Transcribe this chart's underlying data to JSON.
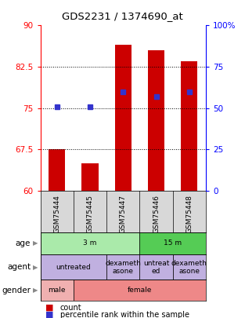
{
  "title": "GDS2231 / 1374690_at",
  "samples": [
    "GSM75444",
    "GSM75445",
    "GSM75447",
    "GSM75446",
    "GSM75448"
  ],
  "bar_values": [
    67.5,
    65.0,
    86.5,
    85.5,
    83.5
  ],
  "bar_base": 60,
  "percentile_values": [
    51,
    51,
    60,
    57,
    60
  ],
  "ylim_left": [
    60,
    90
  ],
  "ylim_right": [
    0,
    100
  ],
  "yticks_left": [
    60,
    67.5,
    75,
    82.5,
    90
  ],
  "ytick_left_labels": [
    "60",
    "67.5",
    "75",
    "82.5",
    "90"
  ],
  "yticks_right": [
    0,
    25,
    50,
    75,
    100
  ],
  "ytick_right_labels": [
    "0",
    "25",
    "50",
    "75",
    "100%"
  ],
  "bar_color": "#cc0000",
  "dot_color": "#3333cc",
  "dotgrid_vals": [
    67.5,
    75.0,
    82.5
  ],
  "age_labels": [
    {
      "text": "3 m",
      "start": 0,
      "end": 2,
      "color": "#aaeaaa"
    },
    {
      "text": "15 m",
      "start": 3,
      "end": 4,
      "color": "#55cc55"
    }
  ],
  "agent_labels": [
    {
      "text": "untreated",
      "start": 0,
      "end": 1,
      "color": "#c0b0e0"
    },
    {
      "text": "dexameth\nasone",
      "start": 2,
      "end": 2,
      "color": "#c0b0e0"
    },
    {
      "text": "untreat\ned",
      "start": 3,
      "end": 3,
      "color": "#c0b0e0"
    },
    {
      "text": "dexameth\nasone",
      "start": 4,
      "end": 4,
      "color": "#c0b0e0"
    }
  ],
  "gender_labels": [
    {
      "text": "male",
      "start": 0,
      "end": 0,
      "color": "#f0b0b0"
    },
    {
      "text": "female",
      "start": 1,
      "end": 4,
      "color": "#ee8888"
    }
  ],
  "row_labels": [
    "age",
    "agent",
    "gender"
  ],
  "legend_count_color": "#cc0000",
  "legend_dot_color": "#3333cc",
  "sample_bg": "#d8d8d8"
}
